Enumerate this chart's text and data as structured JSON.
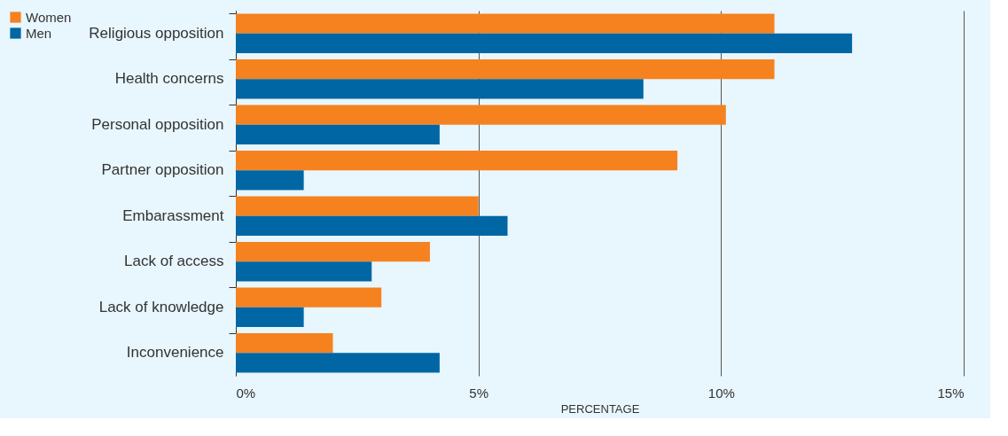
{
  "chart_data": {
    "type": "bar",
    "orientation": "horizontal",
    "xlabel": "PERCENTAGE",
    "categories": [
      "Religious opposition",
      "Health concerns",
      "Personal opposition",
      "Partner opposition",
      "Embarassment",
      "Lack of access",
      "Lack of knowledge",
      "Inconvenience"
    ],
    "series": [
      {
        "name": "Women",
        "color": "#f5821f",
        "values": [
          11.1,
          11.1,
          10.1,
          9.1,
          5.0,
          4.0,
          3.0,
          2.0
        ]
      },
      {
        "name": "Men",
        "color": "#0066a4",
        "values": [
          12.7,
          8.4,
          4.2,
          1.4,
          5.6,
          2.8,
          1.4,
          4.2
        ]
      }
    ],
    "xlim": [
      0,
      15
    ],
    "xticks": [
      {
        "value": 0,
        "label": "0%"
      },
      {
        "value": 5,
        "label": "5%"
      },
      {
        "value": 10,
        "label": "10%"
      },
      {
        "value": 15,
        "label": "15%"
      }
    ],
    "grid": "x",
    "legend": "top left"
  }
}
